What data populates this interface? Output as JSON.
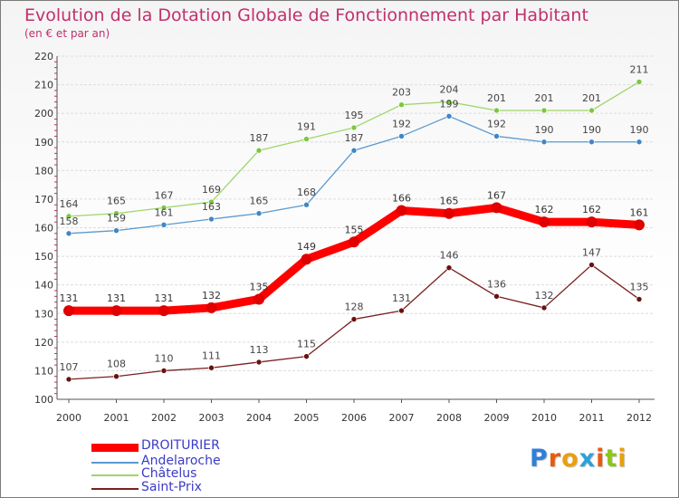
{
  "title": "Evolution de la Dotation Globale de Fonctionnement par Habitant",
  "subtitle": "(en € et par an)",
  "logo": {
    "text": "Proxiti",
    "letters": [
      "P",
      "r",
      "o",
      "x",
      "i",
      "t",
      "i"
    ],
    "colors": [
      "#2f7fd8",
      "#e85a10",
      "#e8a010",
      "#2fa0d8",
      "#e85a10",
      "#8cc61a",
      "#e8a010"
    ]
  },
  "chart_data": {
    "type": "line",
    "x": [
      "2000",
      "2001",
      "2002",
      "2003",
      "2004",
      "2005",
      "2006",
      "2007",
      "2008",
      "2009",
      "2010",
      "2011",
      "2012"
    ],
    "ylim": [
      100,
      220
    ],
    "yticks": [
      "100",
      "110",
      "120",
      "130",
      "140",
      "150",
      "160",
      "170",
      "180",
      "190",
      "200",
      "210",
      "220"
    ],
    "grid": "horizontal",
    "legend_position": "bottom-left",
    "series": [
      {
        "name": "DROITURIER",
        "color": "#ff0000",
        "marker": "#e00000",
        "width": 9,
        "label_color": "#333333",
        "values": [
          131,
          131,
          131,
          132,
          135,
          149,
          155,
          166,
          165,
          167,
          162,
          162,
          161
        ]
      },
      {
        "name": "Andelaroche",
        "color": "#5a9ad0",
        "marker": "#3f86c6",
        "width": 1.3,
        "label_color": "#444444",
        "values": [
          158,
          159,
          161,
          163,
          165,
          168,
          187,
          192,
          199,
          192,
          190,
          190,
          190
        ]
      },
      {
        "name": "Châtelus",
        "color": "#9ed66a",
        "marker": "#7cc740",
        "width": 1.3,
        "label_color": "#444444",
        "values": [
          164,
          165,
          167,
          169,
          187,
          191,
          195,
          203,
          204,
          201,
          201,
          201,
          211
        ]
      },
      {
        "name": "Saint-Prix",
        "color": "#7a2020",
        "marker": "#6a1010",
        "width": 1.3,
        "label_color": "#444444",
        "values": [
          107,
          108,
          110,
          111,
          113,
          115,
          128,
          131,
          146,
          136,
          132,
          147,
          135
        ]
      }
    ]
  }
}
